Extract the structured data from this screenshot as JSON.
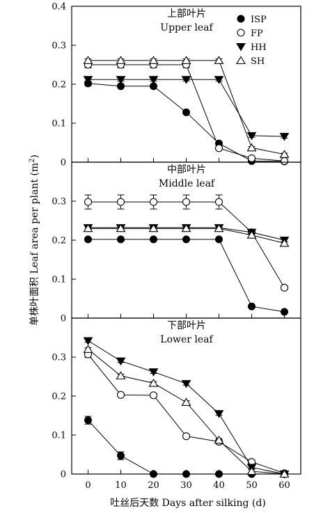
{
  "chart_data": {
    "type": "line",
    "xlabel": "吐丝后天数 Days after silking (d)",
    "ylabel": "单株叶面积 Leaf area per plant (m²)",
    "x": [
      0,
      10,
      20,
      30,
      40,
      50,
      60
    ],
    "xlim": [
      -5,
      65
    ],
    "colors": {
      "line": "#000000",
      "marker_fill": "#000000",
      "marker_open": "#ffffff"
    },
    "legend": {
      "placement": "top-right",
      "entries": [
        {
          "name": "ISP",
          "marker": "filled-circle"
        },
        {
          "name": "FP",
          "marker": "open-circle"
        },
        {
          "name": "HH",
          "marker": "filled-triangle-down"
        },
        {
          "name": "SH",
          "marker": "open-triangle-up"
        }
      ]
    },
    "panels": [
      {
        "title": "上部叶片",
        "subtitle": "Upper leaf",
        "ylim": [
          0,
          0.4
        ],
        "yticks": [
          "0",
          "0.1",
          "0.2",
          "0.3",
          "0.4"
        ],
        "series": [
          {
            "name": "ISP",
            "values": [
              0.202,
              0.195,
              0.195,
              0.128,
              0.048,
              0.003,
              0.002
            ],
            "errors": [
              0.006,
              0.004,
              0.004,
              0.003,
              0.003,
              0.001,
              0.001
            ]
          },
          {
            "name": "FP",
            "values": [
              0.25,
              0.25,
              0.25,
              0.25,
              0.036,
              0.01,
              0.003
            ],
            "errors": [
              0.008,
              0.008,
              0.008,
              0.008,
              0.004,
              0.002,
              0.002
            ]
          },
          {
            "name": "HH",
            "values": [
              0.212,
              0.212,
              0.212,
              0.212,
              0.212,
              0.068,
              0.066
            ],
            "errors": [
              0.004,
              0.004,
              0.004,
              0.004,
              0.004,
              0.004,
              0.004
            ]
          },
          {
            "name": "SH",
            "values": [
              0.261,
              0.261,
              0.261,
              0.261,
              0.261,
              0.037,
              0.02
            ],
            "errors": [
              0.004,
              0.004,
              0.004,
              0.004,
              0.004,
              0.003,
              0.003
            ]
          }
        ]
      },
      {
        "title": "中部叶片",
        "subtitle": "Middle leaf",
        "ylim": [
          0,
          0.4
        ],
        "yticks": [
          "0",
          "0.1",
          "0.2",
          "0.3"
        ],
        "series": [
          {
            "name": "ISP",
            "values": [
              0.202,
              0.202,
              0.202,
              0.202,
              0.202,
              0.03,
              0.016
            ],
            "errors": [
              0.004,
              0.004,
              0.004,
              0.004,
              0.004,
              0.002,
              0.002
            ]
          },
          {
            "name": "FP",
            "values": [
              0.298,
              0.298,
              0.298,
              0.298,
              0.298,
              0.22,
              0.078
            ],
            "errors": [
              0.018,
              0.018,
              0.018,
              0.018,
              0.018,
              0.005,
              0.005
            ]
          },
          {
            "name": "HH",
            "values": [
              0.232,
              0.232,
              0.232,
              0.232,
              0.232,
              0.22,
              0.2
            ],
            "errors": [
              0.004,
              0.004,
              0.004,
              0.004,
              0.004,
              0.004,
              0.004
            ]
          },
          {
            "name": "SH",
            "values": [
              0.23,
              0.23,
              0.23,
              0.23,
              0.23,
              0.213,
              0.192
            ],
            "errors": [
              0.004,
              0.004,
              0.004,
              0.004,
              0.004,
              0.004,
              0.004
            ]
          }
        ]
      },
      {
        "title": "下部叶片",
        "subtitle": "Lower leaf",
        "ylim": [
          0,
          0.4
        ],
        "yticks": [
          "0",
          "0.1",
          "0.2",
          "0.3"
        ],
        "series": [
          {
            "name": "ISP",
            "values": [
              0.138,
              0.047,
              0.0,
              0.0,
              0.0,
              0.0,
              0.0
            ],
            "errors": [
              0.01,
              0.01,
              0.0,
              0.0,
              0.0,
              0.0,
              0.0
            ]
          },
          {
            "name": "FP",
            "values": [
              0.307,
              0.203,
              0.202,
              0.097,
              0.083,
              0.031,
              0.002
            ],
            "errors": [
              0.008,
              0.004,
              0.004,
              0.004,
              0.004,
              0.004,
              0.002
            ]
          },
          {
            "name": "HH",
            "values": [
              0.342,
              0.29,
              0.262,
              0.232,
              0.155,
              0.017,
              0.0
            ],
            "errors": [
              0.004,
              0.004,
              0.004,
              0.004,
              0.004,
              0.004,
              0.0
            ]
          },
          {
            "name": "SH",
            "values": [
              0.32,
              0.252,
              0.233,
              0.184,
              0.087,
              0.007,
              0.0
            ],
            "errors": [
              0.004,
              0.004,
              0.004,
              0.004,
              0.004,
              0.004,
              0.0
            ]
          }
        ]
      }
    ]
  }
}
